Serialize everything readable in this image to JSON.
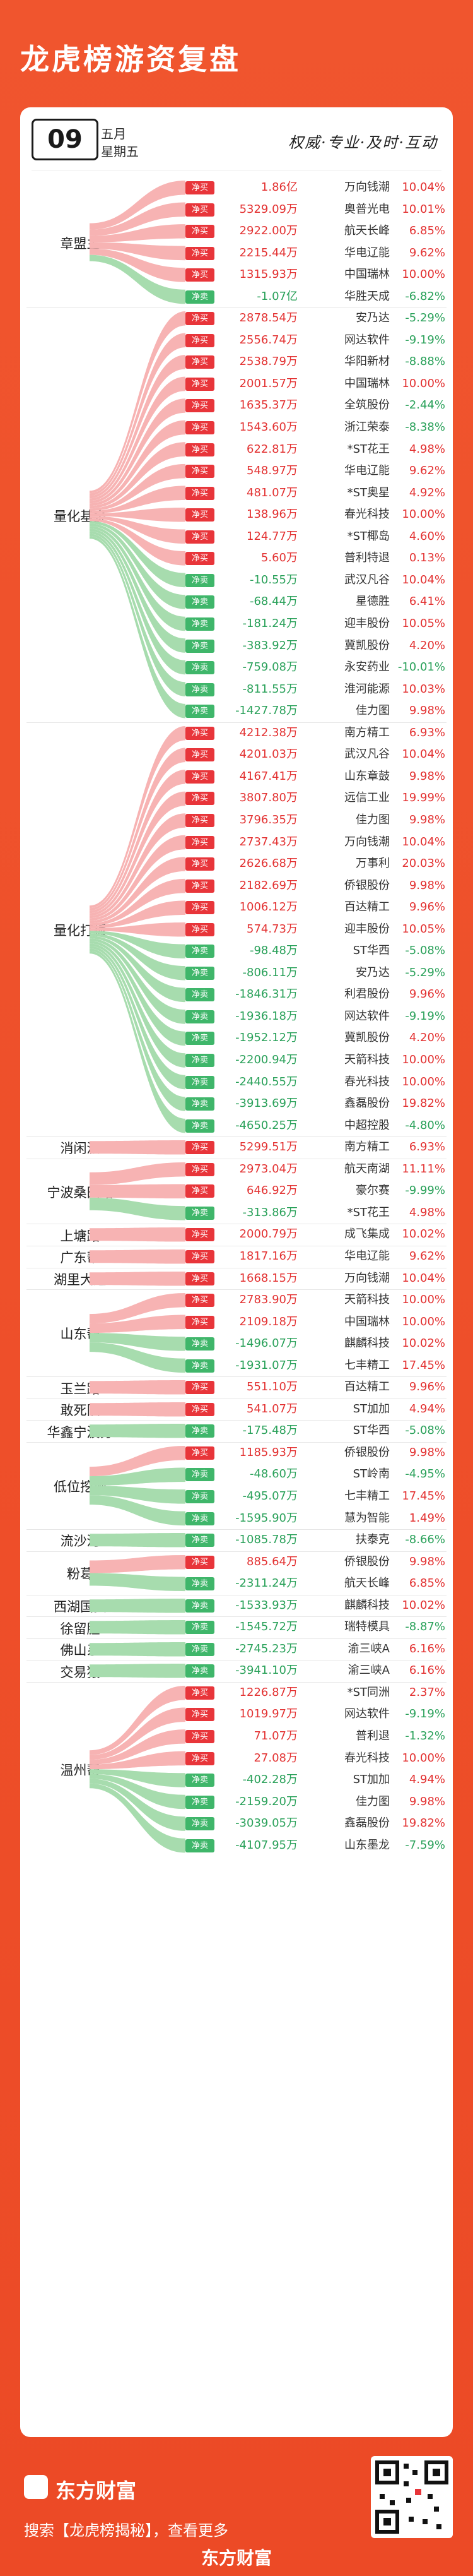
{
  "header": {
    "title": "龙虎榜游资复盘"
  },
  "date": {
    "day": "09",
    "month": "五月",
    "weekday": "星期五"
  },
  "slogan": "权威·专业·及时·互动",
  "tags": {
    "buy": "净买",
    "sell": "净卖"
  },
  "groups": [
    {
      "name": "章盟主",
      "rows": [
        {
          "amount": "1.86亿",
          "stock": "万向钱潮",
          "pct": "10.04%",
          "side": "buy"
        },
        {
          "amount": "5329.09万",
          "stock": "奥普光电",
          "pct": "10.01%",
          "side": "buy"
        },
        {
          "amount": "2922.00万",
          "stock": "航天长峰",
          "pct": "6.85%",
          "side": "buy"
        },
        {
          "amount": "2215.44万",
          "stock": "华电辽能",
          "pct": "9.62%",
          "side": "buy"
        },
        {
          "amount": "1315.93万",
          "stock": "中国瑞林",
          "pct": "10.00%",
          "side": "buy"
        },
        {
          "amount": "-1.07亿",
          "stock": "华胜天成",
          "pct": "-6.82%",
          "side": "sell"
        }
      ]
    },
    {
      "name": "量化基金",
      "rows": [
        {
          "amount": "2878.54万",
          "stock": "安乃达",
          "pct": "-5.29%",
          "side": "buy"
        },
        {
          "amount": "2556.74万",
          "stock": "网达软件",
          "pct": "-9.19%",
          "side": "buy"
        },
        {
          "amount": "2538.79万",
          "stock": "华阳新材",
          "pct": "-8.88%",
          "side": "buy"
        },
        {
          "amount": "2001.57万",
          "stock": "中国瑞林",
          "pct": "10.00%",
          "side": "buy"
        },
        {
          "amount": "1635.37万",
          "stock": "全筑股份",
          "pct": "-2.44%",
          "side": "buy"
        },
        {
          "amount": "1543.60万",
          "stock": "浙江荣泰",
          "pct": "-8.38%",
          "side": "buy"
        },
        {
          "amount": "622.81万",
          "stock": "*ST花王",
          "pct": "4.98%",
          "side": "buy"
        },
        {
          "amount": "548.97万",
          "stock": "华电辽能",
          "pct": "9.62%",
          "side": "buy"
        },
        {
          "amount": "481.07万",
          "stock": "*ST奥星",
          "pct": "4.92%",
          "side": "buy"
        },
        {
          "amount": "138.96万",
          "stock": "春光科技",
          "pct": "10.00%",
          "side": "buy"
        },
        {
          "amount": "124.77万",
          "stock": "*ST椰岛",
          "pct": "4.60%",
          "side": "buy"
        },
        {
          "amount": "5.60万",
          "stock": "普利特退",
          "pct": "0.13%",
          "side": "buy"
        },
        {
          "amount": "-10.55万",
          "stock": "武汉凡谷",
          "pct": "10.04%",
          "side": "sell"
        },
        {
          "amount": "-68.44万",
          "stock": "星德胜",
          "pct": "6.41%",
          "side": "sell"
        },
        {
          "amount": "-181.24万",
          "stock": "迎丰股份",
          "pct": "10.05%",
          "side": "sell"
        },
        {
          "amount": "-383.92万",
          "stock": "冀凯股份",
          "pct": "4.20%",
          "side": "sell"
        },
        {
          "amount": "-759.08万",
          "stock": "永安药业",
          "pct": "-10.01%",
          "side": "sell"
        },
        {
          "amount": "-811.55万",
          "stock": "淮河能源",
          "pct": "10.03%",
          "side": "sell"
        },
        {
          "amount": "-1427.78万",
          "stock": "佳力图",
          "pct": "9.98%",
          "side": "sell"
        }
      ]
    },
    {
      "name": "量化打板",
      "rows": [
        {
          "amount": "4212.38万",
          "stock": "南方精工",
          "pct": "6.93%",
          "side": "buy"
        },
        {
          "amount": "4201.03万",
          "stock": "武汉凡谷",
          "pct": "10.04%",
          "side": "buy"
        },
        {
          "amount": "4167.41万",
          "stock": "山东章鼓",
          "pct": "9.98%",
          "side": "buy"
        },
        {
          "amount": "3807.80万",
          "stock": "远信工业",
          "pct": "19.99%",
          "side": "buy"
        },
        {
          "amount": "3796.35万",
          "stock": "佳力图",
          "pct": "9.98%",
          "side": "buy"
        },
        {
          "amount": "2737.43万",
          "stock": "万向钱潮",
          "pct": "10.04%",
          "side": "buy"
        },
        {
          "amount": "2626.68万",
          "stock": "万事利",
          "pct": "20.03%",
          "side": "buy"
        },
        {
          "amount": "2182.69万",
          "stock": "侨银股份",
          "pct": "9.98%",
          "side": "buy"
        },
        {
          "amount": "1006.12万",
          "stock": "百达精工",
          "pct": "9.96%",
          "side": "buy"
        },
        {
          "amount": "574.73万",
          "stock": "迎丰股份",
          "pct": "10.05%",
          "side": "buy"
        },
        {
          "amount": "-98.48万",
          "stock": "ST华西",
          "pct": "-5.08%",
          "side": "sell"
        },
        {
          "amount": "-806.11万",
          "stock": "安乃达",
          "pct": "-5.29%",
          "side": "sell"
        },
        {
          "amount": "-1846.31万",
          "stock": "利君股份",
          "pct": "9.96%",
          "side": "sell"
        },
        {
          "amount": "-1936.18万",
          "stock": "网达软件",
          "pct": "-9.19%",
          "side": "sell"
        },
        {
          "amount": "-1952.12万",
          "stock": "冀凯股份",
          "pct": "4.20%",
          "side": "sell"
        },
        {
          "amount": "-2200.94万",
          "stock": "天箭科技",
          "pct": "10.00%",
          "side": "sell"
        },
        {
          "amount": "-2440.55万",
          "stock": "春光科技",
          "pct": "10.00%",
          "side": "sell"
        },
        {
          "amount": "-3913.69万",
          "stock": "鑫磊股份",
          "pct": "19.82%",
          "side": "sell"
        },
        {
          "amount": "-4650.25万",
          "stock": "中超控股",
          "pct": "-4.80%",
          "side": "sell"
        }
      ]
    },
    {
      "name": "消闲派",
      "rows": [
        {
          "amount": "5299.51万",
          "stock": "南方精工",
          "pct": "6.93%",
          "side": "buy"
        }
      ]
    },
    {
      "name": "宁波桑田路",
      "rows": [
        {
          "amount": "2973.04万",
          "stock": "航天南湖",
          "pct": "11.11%",
          "side": "buy"
        },
        {
          "amount": "646.92万",
          "stock": "豪尔赛",
          "pct": "-9.99%",
          "side": "buy"
        },
        {
          "amount": "-313.86万",
          "stock": "*ST花王",
          "pct": "4.98%",
          "side": "sell"
        }
      ]
    },
    {
      "name": "上塘路",
      "rows": [
        {
          "amount": "2000.79万",
          "stock": "成飞集成",
          "pct": "10.02%",
          "side": "buy"
        }
      ]
    },
    {
      "name": "广东帮",
      "rows": [
        {
          "amount": "1817.16万",
          "stock": "华电辽能",
          "pct": "9.62%",
          "side": "buy"
        }
      ]
    },
    {
      "name": "湖里大道",
      "rows": [
        {
          "amount": "1668.15万",
          "stock": "万向钱潮",
          "pct": "10.04%",
          "side": "buy"
        }
      ]
    },
    {
      "name": "山东帮",
      "rows": [
        {
          "amount": "2783.90万",
          "stock": "天箭科技",
          "pct": "10.00%",
          "side": "buy"
        },
        {
          "amount": "2109.18万",
          "stock": "中国瑞林",
          "pct": "10.00%",
          "side": "buy"
        },
        {
          "amount": "-1496.07万",
          "stock": "麒麟科技",
          "pct": "10.02%",
          "side": "sell"
        },
        {
          "amount": "-1931.07万",
          "stock": "七丰精工",
          "pct": "17.45%",
          "side": "sell"
        }
      ]
    },
    {
      "name": "玉兰路",
      "rows": [
        {
          "amount": "551.10万",
          "stock": "百达精工",
          "pct": "9.96%",
          "side": "buy"
        }
      ]
    },
    {
      "name": "敢死队",
      "rows": [
        {
          "amount": "541.07万",
          "stock": "ST加加",
          "pct": "4.94%",
          "side": "buy"
        }
      ]
    },
    {
      "name": "华鑫宁波分",
      "rows": [
        {
          "amount": "-175.48万",
          "stock": "ST华西",
          "pct": "-5.08%",
          "side": "sell"
        }
      ]
    },
    {
      "name": "低位挖掘",
      "rows": [
        {
          "amount": "1185.93万",
          "stock": "侨银股份",
          "pct": "9.98%",
          "side": "buy"
        },
        {
          "amount": "-48.60万",
          "stock": "ST岭南",
          "pct": "-4.95%",
          "side": "sell"
        },
        {
          "amount": "-495.07万",
          "stock": "七丰精工",
          "pct": "17.45%",
          "side": "sell"
        },
        {
          "amount": "-1595.90万",
          "stock": "慧为智能",
          "pct": "1.49%",
          "side": "sell"
        }
      ]
    },
    {
      "name": "流沙河",
      "rows": [
        {
          "amount": "-1085.78万",
          "stock": "扶泰克",
          "pct": "-8.66%",
          "side": "sell"
        }
      ]
    },
    {
      "name": "粉葛",
      "rows": [
        {
          "amount": "885.64万",
          "stock": "侨银股份",
          "pct": "9.98%",
          "side": "buy"
        },
        {
          "amount": "-2311.24万",
          "stock": "航天长峰",
          "pct": "6.85%",
          "side": "sell"
        }
      ]
    },
    {
      "name": "西湖国贸",
      "rows": [
        {
          "amount": "-1533.93万",
          "stock": "麒麟科技",
          "pct": "10.02%",
          "side": "sell"
        }
      ]
    },
    {
      "name": "徐留胜",
      "rows": [
        {
          "amount": "-1545.72万",
          "stock": "瑞特模具",
          "pct": "-8.87%",
          "side": "sell"
        }
      ]
    },
    {
      "name": "佛山系",
      "rows": [
        {
          "amount": "-2745.23万",
          "stock": "渝三峡A",
          "pct": "6.16%",
          "side": "sell"
        }
      ]
    },
    {
      "name": "交易猿",
      "rows": [
        {
          "amount": "-3941.10万",
          "stock": "渝三峡A",
          "pct": "6.16%",
          "side": "sell"
        }
      ]
    },
    {
      "name": "温州帮",
      "rows": [
        {
          "amount": "1226.87万",
          "stock": "*ST同洲",
          "pct": "2.37%",
          "side": "buy"
        },
        {
          "amount": "1019.97万",
          "stock": "网达软件",
          "pct": "-9.19%",
          "side": "buy"
        },
        {
          "amount": "71.07万",
          "stock": "普利退",
          "pct": "-1.32%",
          "side": "buy"
        },
        {
          "amount": "27.08万",
          "stock": "春光科技",
          "pct": "10.00%",
          "side": "buy"
        },
        {
          "amount": "-402.28万",
          "stock": "ST加加",
          "pct": "4.94%",
          "side": "sell"
        },
        {
          "amount": "-2159.20万",
          "stock": "佳力图",
          "pct": "9.98%",
          "side": "sell"
        },
        {
          "amount": "-3039.05万",
          "stock": "鑫磊股份",
          "pct": "19.82%",
          "side": "sell"
        },
        {
          "amount": "-4107.95万",
          "stock": "山东墨龙",
          "pct": "-7.59%",
          "side": "sell"
        }
      ]
    }
  ],
  "footer": {
    "logo": "东方财富",
    "tip": "搜索【龙虎榜揭秘】，查看更多",
    "brand": "东方财富"
  },
  "colors": {
    "buy": "#e8353a",
    "sell": "#3fb66a",
    "band_buy": "#f7b3b3",
    "band_sell": "#a7dcae"
  }
}
